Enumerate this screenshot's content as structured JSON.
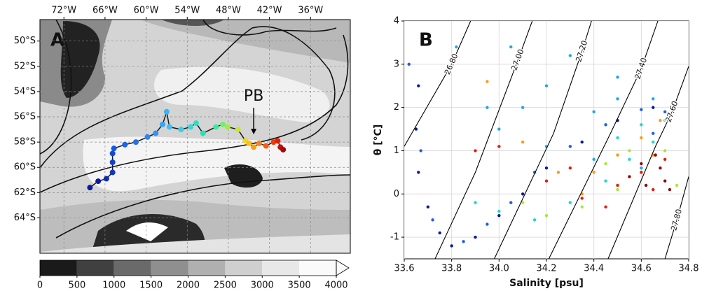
{
  "chart_data": [
    {
      "type": "map",
      "panel_label": "A",
      "xlim": [
        -75.5,
        -30.2
      ],
      "ylim": [
        -66.8,
        -48.3
      ],
      "xticks": [
        {
          "value": -72,
          "label": "72°W"
        },
        {
          "value": -66,
          "label": "66°W"
        },
        {
          "value": -60,
          "label": "60°W"
        },
        {
          "value": -54,
          "label": "54°W"
        },
        {
          "value": -48,
          "label": "48°W"
        },
        {
          "value": -42,
          "label": "42°W"
        },
        {
          "value": -36,
          "label": "36°W"
        }
      ],
      "yticks": [
        {
          "value": -50,
          "label": "50°S"
        },
        {
          "value": -52,
          "label": "52°S"
        },
        {
          "value": -54,
          "label": "54°S"
        },
        {
          "value": -56,
          "label": "56°S"
        },
        {
          "value": -58,
          "label": "58°S"
        },
        {
          "value": -60,
          "label": "60°S"
        },
        {
          "value": -62,
          "label": "62°S"
        },
        {
          "value": -64,
          "label": "64°S"
        }
      ],
      "grid": true,
      "track": {
        "x": [
          -68.2,
          -67.0,
          -65.8,
          -64.9,
          -64.9,
          -64.9,
          -64.7,
          -63.1,
          -61.5,
          -59.8,
          -58.6,
          -57.6,
          -57.0,
          -56.6,
          -54.9,
          -53.5,
          -52.7,
          -51.7,
          -49.8,
          -48.8,
          -48.1,
          -46.6,
          -45.5,
          -45.0,
          -44.3,
          -43.5,
          -42.5,
          -41.4,
          -40.8,
          -40.4,
          -40.0
        ],
        "y": [
          -61.6,
          -61.1,
          -60.9,
          -60.4,
          -59.6,
          -58.9,
          -58.5,
          -58.2,
          -58.0,
          -57.6,
          -57.3,
          -56.6,
          -55.6,
          -56.8,
          -57.0,
          -56.8,
          -56.5,
          -57.3,
          -56.8,
          -56.6,
          -56.8,
          -57.0,
          -57.9,
          -58.1,
          -58.4,
          -58.1,
          -58.3,
          -58.0,
          -57.9,
          -58.4,
          -58.6
        ],
        "colors": [
          "#0a1a9e",
          "#0a1a9e",
          "#0f2bb0",
          "#1236c0",
          "#1440cc",
          "#164ad6",
          "#1a56e0",
          "#1e64e8",
          "#2272ee",
          "#2a84f2",
          "#3094f4",
          "#36a4f4",
          "#3cb2f2",
          "#40c0ee",
          "#3ccce4",
          "#38d6d8",
          "#30dcc8",
          "#28e0b8",
          "#40e89a",
          "#70ee70",
          "#a0ee40",
          "#c8e830",
          "#ecd820",
          "#ffc010",
          "#ffa010",
          "#ff8010",
          "#ff5a0a",
          "#f03a0a",
          "#e0200a",
          "#c0120a",
          "#a00a0a"
        ],
        "line_color": "#1a1a1a"
      },
      "annotation": {
        "text": "PB",
        "x": -44.3,
        "y": -57.5
      },
      "colorbar": {
        "ticks": [
          0,
          500,
          1000,
          1500,
          2000,
          2500,
          3000,
          3500,
          4000
        ],
        "colors": [
          "#1a1a1a",
          "#404040",
          "#6a6a6a",
          "#8f8f8f",
          "#b0b0b0",
          "#cfcfcf",
          "#e8e8e8",
          "#fafafa"
        ]
      }
    },
    {
      "type": "scatter",
      "panel_label": "B",
      "x_label": "Salinity [psu]",
      "y_label": "θ [°C]",
      "xlim": [
        33.6,
        34.8
      ],
      "ylim": [
        -1.5,
        4
      ],
      "xticks": [
        {
          "value": 33.6,
          "label": "33.6"
        },
        {
          "value": 33.8,
          "label": "33.8"
        },
        {
          "value": 34.0,
          "label": "34.0"
        },
        {
          "value": 34.2,
          "label": "34.2"
        },
        {
          "value": 34.4,
          "label": "34.4"
        },
        {
          "value": 34.6,
          "label": "34.6"
        },
        {
          "value": 34.8,
          "label": "34.8"
        }
      ],
      "yticks": [
        -1,
        0,
        1,
        2,
        3,
        4
      ],
      "grid": true,
      "contours": [
        {
          "label": "26.80",
          "x": [
            33.6,
            33.8,
            33.88
          ],
          "y": [
            1.1,
            3.0,
            4
          ]
        },
        {
          "label": "27.00",
          "x": [
            33.73,
            33.9,
            34.08,
            34.14
          ],
          "y": [
            -1.5,
            0.5,
            3.1,
            4
          ]
        },
        {
          "label": "27.20",
          "x": [
            33.98,
            34.23,
            34.35,
            34.39
          ],
          "y": [
            -1.5,
            1.4,
            3.3,
            4
          ]
        },
        {
          "label": "27.40",
          "x": [
            34.21,
            34.47,
            34.6,
            34.67
          ],
          "y": [
            -1.5,
            1.4,
            2.9,
            4
          ]
        },
        {
          "label": "27.60",
          "x": [
            34.46,
            34.66,
            34.73,
            34.8
          ],
          "y": [
            -1.5,
            1.1,
            1.9,
            2.95
          ]
        },
        {
          "label": "27.80",
          "x": [
            34.7,
            34.75,
            34.8
          ],
          "y": [
            -1.5,
            -0.6,
            0.4
          ]
        }
      ],
      "series": [
        {
          "color": "#0a1a9e",
          "x": [
            33.66,
            33.65,
            33.66,
            33.7,
            33.75,
            33.8,
            33.9,
            34.0,
            34.1,
            34.2,
            34.35,
            34.5,
            34.65
          ],
          "y": [
            2.5,
            1.5,
            0.5,
            -0.3,
            -0.9,
            -1.2,
            -1.0,
            -0.5,
            0.0,
            0.6,
            1.2,
            1.7,
            2.0
          ]
        },
        {
          "color": "#1f5fe0",
          "x": [
            33.62,
            33.67,
            33.72,
            33.85,
            33.95,
            34.05,
            34.15,
            34.3,
            34.45,
            34.6,
            34.7,
            34.65
          ],
          "y": [
            3.0,
            1.0,
            -0.6,
            -1.1,
            -0.7,
            -0.2,
            0.5,
            1.1,
            1.6,
            1.95,
            1.9,
            1.4
          ]
        },
        {
          "color": "#1fa8e8",
          "x": [
            33.82,
            34.05,
            34.3,
            34.5,
            34.65,
            34.4,
            34.1,
            33.95,
            34.0,
            34.2,
            34.4,
            34.6,
            34.5,
            34.2
          ],
          "y": [
            3.4,
            3.4,
            3.2,
            2.7,
            2.2,
            1.9,
            2.0,
            2.0,
            1.5,
            1.1,
            0.8,
            0.6,
            2.2,
            2.5
          ]
        },
        {
          "color": "#20d8c8",
          "x": [
            33.9,
            34.0,
            34.15,
            34.3,
            34.45,
            34.55,
            34.65,
            34.7,
            34.6,
            34.5
          ],
          "y": [
            -0.2,
            -0.4,
            -0.6,
            -0.2,
            0.3,
            0.8,
            1.2,
            1.7,
            1.6,
            1.3
          ]
        },
        {
          "color": "#a8e830",
          "x": [
            34.1,
            34.2,
            34.35,
            34.5,
            34.6,
            34.7,
            34.75,
            34.55,
            34.45
          ],
          "y": [
            -0.2,
            -0.5,
            -0.3,
            0.1,
            0.5,
            1.0,
            0.2,
            1.0,
            0.7
          ]
        },
        {
          "color": "#ff9a10",
          "x": [
            33.95,
            34.1,
            34.25,
            34.4,
            34.5,
            34.6,
            34.68,
            34.55,
            34.35,
            34.65
          ],
          "y": [
            2.6,
            1.2,
            0.5,
            0.5,
            0.9,
            1.3,
            1.7,
            0.4,
            0.0,
            0.9
          ]
        },
        {
          "color": "#e81a0a",
          "x": [
            33.9,
            34.0,
            34.2,
            34.35,
            34.5,
            34.6,
            34.7,
            34.65,
            34.45,
            34.3
          ],
          "y": [
            1.0,
            1.1,
            0.3,
            -0.1,
            0.2,
            0.5,
            0.8,
            0.1,
            -0.3,
            0.6
          ]
        },
        {
          "color": "#8e0a0a",
          "x": [
            34.55,
            34.62,
            34.68,
            34.7,
            34.6,
            34.66,
            34.72
          ],
          "y": [
            0.4,
            0.2,
            0.6,
            0.3,
            0.7,
            0.9,
            0.1
          ]
        }
      ]
    }
  ]
}
